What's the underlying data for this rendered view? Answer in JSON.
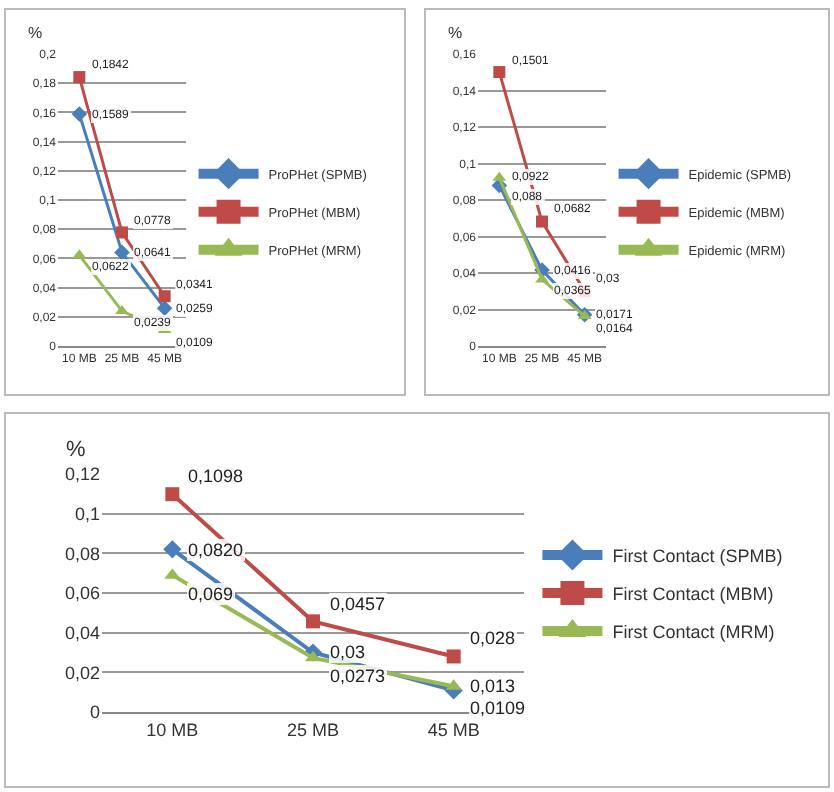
{
  "chart_data": [
    {
      "type": "line",
      "ylabel": "%",
      "categories": [
        "10 MB",
        "25 MB",
        "45 MB"
      ],
      "ylim": [
        0,
        0.2
      ],
      "yticks": [
        {
          "value": 0,
          "label": "0"
        },
        {
          "value": 0.02,
          "label": "0,02"
        },
        {
          "value": 0.04,
          "label": "0,04"
        },
        {
          "value": 0.06,
          "label": "0,06"
        },
        {
          "value": 0.08,
          "label": "0,08"
        },
        {
          "value": 0.1,
          "label": "0,1"
        },
        {
          "value": 0.12,
          "label": "0,12"
        },
        {
          "value": 0.14,
          "label": "0,14"
        },
        {
          "value": 0.16,
          "label": "0,16"
        },
        {
          "value": 0.18,
          "label": "0,18"
        },
        {
          "value": 0.2,
          "label": "0,2"
        }
      ],
      "grid": "y",
      "legend": "right",
      "line_style": "solid",
      "series": [
        {
          "name": "ProPHet (SPMB)",
          "color": "#4a7ebb",
          "marker": "diamond",
          "values": [
            0.1589,
            0.0641,
            0.0259
          ],
          "value_labels": [
            "0,1589",
            "0,0641",
            "0,0259"
          ]
        },
        {
          "name": "ProPHet (MBM)",
          "color": "#be4b48",
          "marker": "square",
          "values": [
            0.1842,
            0.0778,
            0.0341
          ],
          "value_labels": [
            "0,1842",
            "0,0778",
            "0,0341"
          ]
        },
        {
          "name": "ProPHet (MRM)",
          "color": "#98b954",
          "marker": "triangle",
          "values": [
            0.0622,
            0.0239,
            0.0109
          ],
          "value_labels": [
            "0,0622",
            "0,0239",
            "0,0109"
          ]
        }
      ]
    },
    {
      "type": "line",
      "ylabel": "%",
      "categories": [
        "10 MB",
        "25 MB",
        "45 MB"
      ],
      "ylim": [
        0,
        0.16
      ],
      "yticks": [
        {
          "value": 0,
          "label": "0"
        },
        {
          "value": 0.02,
          "label": "0,02"
        },
        {
          "value": 0.04,
          "label": "0,04"
        },
        {
          "value": 0.06,
          "label": "0,06"
        },
        {
          "value": 0.08,
          "label": "0,08"
        },
        {
          "value": 0.1,
          "label": "0,1"
        },
        {
          "value": 0.12,
          "label": "0,12"
        },
        {
          "value": 0.14,
          "label": "0,14"
        },
        {
          "value": 0.16,
          "label": "0,16"
        }
      ],
      "grid": "y",
      "legend": "right",
      "line_style": "solid",
      "series": [
        {
          "name": "Epidemic (SPMB)",
          "color": "#4a7ebb",
          "marker": "diamond",
          "values": [
            0.088,
            0.0416,
            0.0171
          ],
          "value_labels": [
            "0,088",
            "0,0416",
            "0,0171"
          ]
        },
        {
          "name": "Epidemic (MBM)",
          "color": "#be4b48",
          "marker": "square",
          "values": [
            0.1501,
            0.0682,
            0.03
          ],
          "value_labels": [
            "0,1501",
            "0,0682",
            "0,03"
          ]
        },
        {
          "name": "Epidemic (MRM)",
          "color": "#98b954",
          "marker": "triangle",
          "values": [
            0.0922,
            0.0365,
            0.0164
          ],
          "value_labels": [
            "0,0922",
            "0,0365",
            "0,0164"
          ]
        }
      ]
    },
    {
      "type": "line",
      "ylabel": "%",
      "categories": [
        "10 MB",
        "25 MB",
        "45 MB"
      ],
      "ylim": [
        0,
        0.12
      ],
      "yticks": [
        {
          "value": 0,
          "label": "0"
        },
        {
          "value": 0.02,
          "label": "0,02"
        },
        {
          "value": 0.04,
          "label": "0,04"
        },
        {
          "value": 0.06,
          "label": "0,06"
        },
        {
          "value": 0.08,
          "label": "0,08"
        },
        {
          "value": 0.1,
          "label": "0,1"
        },
        {
          "value": 0.12,
          "label": "0,12"
        }
      ],
      "grid": "y",
      "legend": "right",
      "line_style": "solid",
      "series": [
        {
          "name": "First Contact (SPMB)",
          "color": "#4a7ebb",
          "marker": "diamond",
          "values": [
            0.082,
            0.03,
            0.0109
          ],
          "value_labels": [
            "0,0820",
            "0,03",
            "0,0109"
          ]
        },
        {
          "name": "First Contact (MBM)",
          "color": "#be4b48",
          "marker": "square",
          "values": [
            0.1098,
            0.0457,
            0.028
          ],
          "value_labels": [
            "0,1098",
            "0,0457",
            "0,028"
          ]
        },
        {
          "name": "First Contact (MRM)",
          "color": "#98b954",
          "marker": "triangle",
          "values": [
            0.069,
            0.0273,
            0.013
          ],
          "value_labels": [
            "0,069",
            "0,0273",
            "0,013"
          ]
        }
      ]
    }
  ]
}
